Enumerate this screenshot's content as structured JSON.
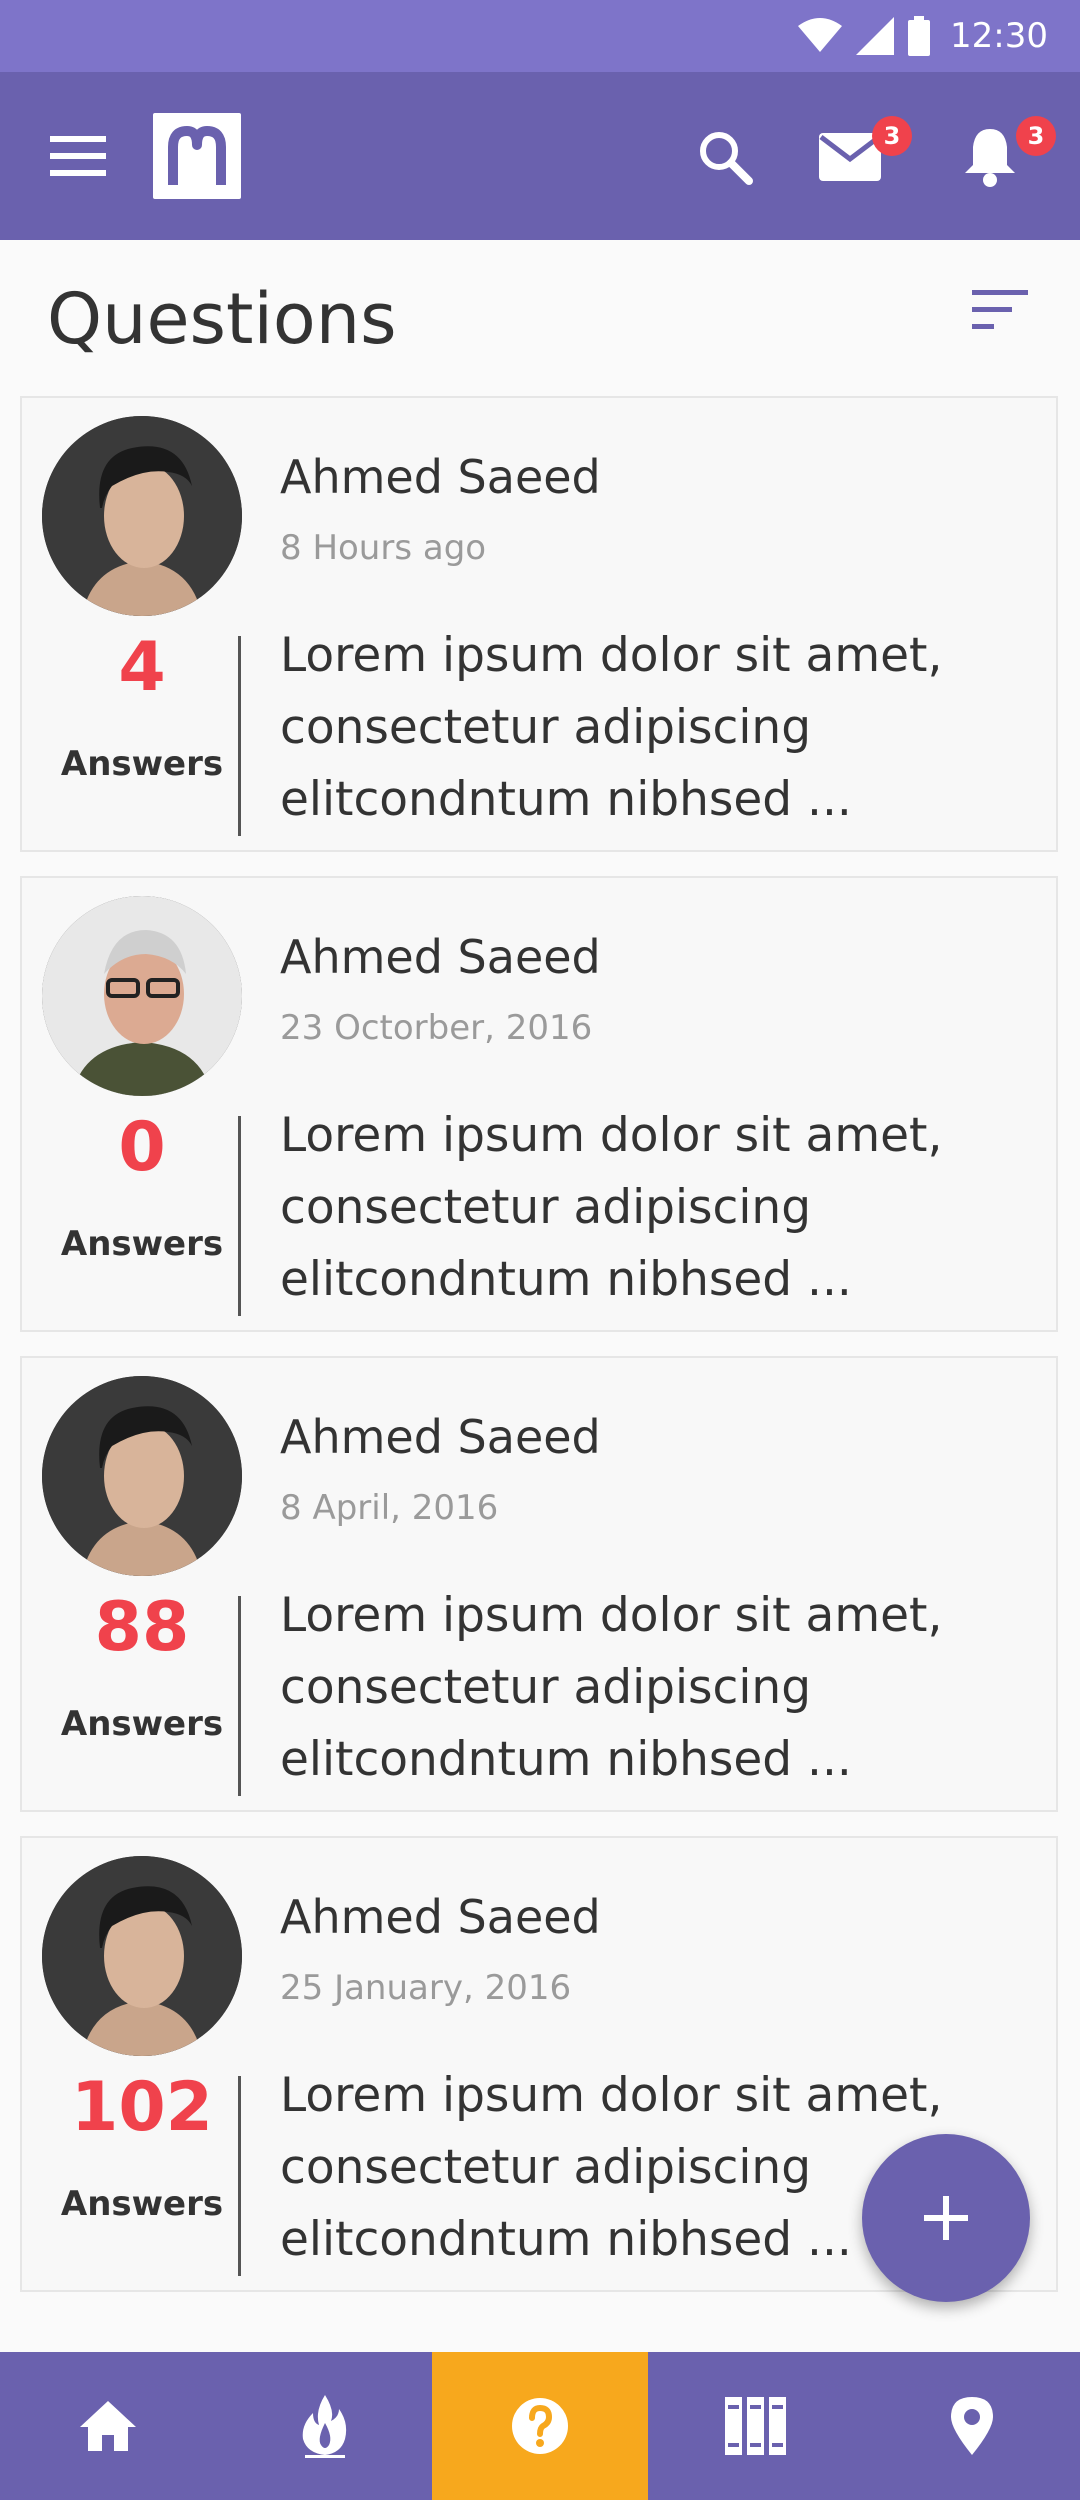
{
  "status_bar": {
    "time": "12:30"
  },
  "app_bar": {
    "mail_badge": "3",
    "notification_badge": "3"
  },
  "page": {
    "title": "Questions"
  },
  "questions": [
    {
      "author": "Ahmed Saeed",
      "date": "8 Hours ago",
      "answer_count": "4",
      "answers_label": "Answers",
      "excerpt": "Lorem ipsum dolor sit amet, consectetur adipiscing elitcondntum nibhsed ..."
    },
    {
      "author": "Ahmed Saeed",
      "date": "23 Octorber, 2016",
      "answer_count": "0",
      "answers_label": "Answers",
      "excerpt": "Lorem ipsum dolor sit amet, consectetur adipiscing elitcondntum nibhsed ..."
    },
    {
      "author": "Ahmed Saeed",
      "date": "8 April, 2016",
      "answer_count": "88",
      "answers_label": "Answers",
      "excerpt": "Lorem ipsum dolor sit amet, consectetur adipiscing elitcondntum nibhsed ..."
    },
    {
      "author": "Ahmed Saeed",
      "date": "25 January, 2016",
      "answer_count": "102",
      "answers_label": "Answers",
      "excerpt": "Lorem ipsum dolor sit amet, consectetur adipiscing elitcondntum nibhsed ..."
    }
  ],
  "bottom_nav": {
    "items": [
      {
        "icon": "home-icon",
        "active": false
      },
      {
        "icon": "fire-icon",
        "active": false
      },
      {
        "icon": "question-icon",
        "active": true
      },
      {
        "icon": "library-icon",
        "active": false
      },
      {
        "icon": "location-pin-icon",
        "active": false
      }
    ]
  },
  "colors": {
    "primary": "#6a61ae",
    "status_bar": "#7e74c9",
    "accent": "#f7a81d",
    "count": "#f0424c"
  }
}
